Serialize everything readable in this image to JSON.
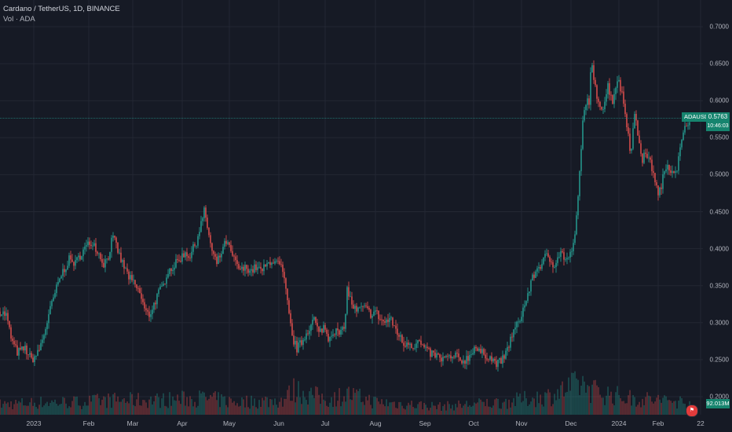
{
  "header": {
    "title": "Cardano / TetherUS, 1D, BINANCE",
    "volume_label": "Vol · ADA"
  },
  "symbol_badge": "ADAUSDT",
  "last_price": "0.5763",
  "countdown": "10:46:03",
  "volume_value": "92.013M",
  "calendar_icon_text": "",
  "colors": {
    "background": "#161a25",
    "up": "#26a69a",
    "down": "#ef5350",
    "grid": "#232733",
    "badge": "#16846e"
  },
  "chart_data": {
    "type": "candlestick",
    "y_ticks": [
      "0.7000",
      "0.6500",
      "0.6000",
      "0.5500",
      "0.5000",
      "0.4500",
      "0.4000",
      "0.3500",
      "0.3000",
      "0.2500",
      "0.2000"
    ],
    "x_ticks": [
      "2023",
      "Feb",
      "Mar",
      "Apr",
      "May",
      "Jun",
      "Jul",
      "Aug",
      "Sep",
      "Oct",
      "Nov",
      "Dec",
      "2024",
      "Feb",
      "22"
    ],
    "ylim": [
      0.2,
      0.7
    ],
    "grid": true,
    "close_path": [
      [
        0,
        0.315
      ],
      [
        8,
        0.31
      ],
      [
        15,
        0.275
      ],
      [
        22,
        0.26
      ],
      [
        32,
        0.265
      ],
      [
        40,
        0.25
      ],
      [
        48,
        0.258
      ],
      [
        55,
        0.28
      ],
      [
        62,
        0.31
      ],
      [
        70,
        0.34
      ],
      [
        78,
        0.365
      ],
      [
        88,
        0.385
      ],
      [
        96,
        0.38
      ],
      [
        104,
        0.395
      ],
      [
        112,
        0.405
      ],
      [
        118,
        0.41
      ],
      [
        125,
        0.395
      ],
      [
        132,
        0.38
      ],
      [
        138,
        0.39
      ],
      [
        143,
        0.415
      ],
      [
        148,
        0.405
      ],
      [
        152,
        0.39
      ],
      [
        158,
        0.375
      ],
      [
        165,
        0.36
      ],
      [
        172,
        0.35
      ],
      [
        178,
        0.34
      ],
      [
        185,
        0.315
      ],
      [
        190,
        0.31
      ],
      [
        196,
        0.325
      ],
      [
        202,
        0.34
      ],
      [
        208,
        0.35
      ],
      [
        213,
        0.37
      ],
      [
        220,
        0.375
      ],
      [
        228,
        0.385
      ],
      [
        236,
        0.395
      ],
      [
        242,
        0.39
      ],
      [
        250,
        0.41
      ],
      [
        255,
        0.43
      ],
      [
        260,
        0.45
      ],
      [
        264,
        0.43
      ],
      [
        270,
        0.395
      ],
      [
        276,
        0.38
      ],
      [
        282,
        0.395
      ],
      [
        288,
        0.41
      ],
      [
        294,
        0.395
      ],
      [
        300,
        0.38
      ],
      [
        307,
        0.37
      ],
      [
        314,
        0.375
      ],
      [
        320,
        0.37
      ],
      [
        326,
        0.375
      ],
      [
        332,
        0.37
      ],
      [
        338,
        0.375
      ],
      [
        345,
        0.385
      ],
      [
        352,
        0.38
      ],
      [
        358,
        0.375
      ],
      [
        363,
        0.35
      ],
      [
        368,
        0.31
      ],
      [
        372,
        0.28
      ],
      [
        378,
        0.265
      ],
      [
        385,
        0.275
      ],
      [
        392,
        0.29
      ],
      [
        400,
        0.305
      ],
      [
        406,
        0.285
      ],
      [
        412,
        0.295
      ],
      [
        418,
        0.28
      ],
      [
        425,
        0.29
      ],
      [
        432,
        0.285
      ],
      [
        438,
        0.29
      ],
      [
        442,
        0.345
      ],
      [
        448,
        0.325
      ],
      [
        454,
        0.315
      ],
      [
        460,
        0.32
      ],
      [
        466,
        0.318
      ],
      [
        472,
        0.312
      ],
      [
        478,
        0.315
      ],
      [
        484,
        0.305
      ],
      [
        490,
        0.3
      ],
      [
        496,
        0.305
      ],
      [
        502,
        0.295
      ],
      [
        508,
        0.283
      ],
      [
        514,
        0.27
      ],
      [
        520,
        0.275
      ],
      [
        526,
        0.268
      ],
      [
        532,
        0.275
      ],
      [
        538,
        0.268
      ],
      [
        544,
        0.26
      ],
      [
        550,
        0.258
      ],
      [
        556,
        0.255
      ],
      [
        562,
        0.25
      ],
      [
        568,
        0.253
      ],
      [
        574,
        0.251
      ],
      [
        580,
        0.255
      ],
      [
        586,
        0.248
      ],
      [
        592,
        0.25
      ],
      [
        598,
        0.255
      ],
      [
        604,
        0.268
      ],
      [
        610,
        0.26
      ],
      [
        616,
        0.258
      ],
      [
        622,
        0.255
      ],
      [
        628,
        0.248
      ],
      [
        634,
        0.245
      ],
      [
        640,
        0.25
      ],
      [
        645,
        0.26
      ],
      [
        650,
        0.278
      ],
      [
        655,
        0.29
      ],
      [
        660,
        0.3
      ],
      [
        665,
        0.315
      ],
      [
        670,
        0.33
      ],
      [
        675,
        0.35
      ],
      [
        680,
        0.365
      ],
      [
        685,
        0.375
      ],
      [
        690,
        0.38
      ],
      [
        695,
        0.39
      ],
      [
        700,
        0.385
      ],
      [
        705,
        0.378
      ],
      [
        710,
        0.39
      ],
      [
        715,
        0.395
      ],
      [
        720,
        0.385
      ],
      [
        725,
        0.388
      ],
      [
        730,
        0.405
      ],
      [
        734,
        0.44
      ],
      [
        738,
        0.5
      ],
      [
        742,
        0.57
      ],
      [
        746,
        0.6
      ],
      [
        750,
        0.6
      ],
      [
        753,
        0.65
      ],
      [
        757,
        0.62
      ],
      [
        762,
        0.6
      ],
      [
        768,
        0.59
      ],
      [
        774,
        0.62
      ],
      [
        780,
        0.6
      ],
      [
        786,
        0.63
      ],
      [
        792,
        0.61
      ],
      [
        798,
        0.57
      ],
      [
        803,
        0.53
      ],
      [
        808,
        0.58
      ],
      [
        813,
        0.55
      ],
      [
        818,
        0.52
      ],
      [
        823,
        0.53
      ],
      [
        828,
        0.515
      ],
      [
        833,
        0.5
      ],
      [
        838,
        0.47
      ],
      [
        844,
        0.495
      ],
      [
        850,
        0.515
      ],
      [
        856,
        0.505
      ],
      [
        862,
        0.51
      ],
      [
        868,
        0.545
      ],
      [
        873,
        0.565
      ],
      [
        878,
        0.5763
      ]
    ],
    "volume_path": [
      [
        0,
        0.25
      ],
      [
        60,
        0.3
      ],
      [
        100,
        0.3
      ],
      [
        140,
        0.35
      ],
      [
        200,
        0.35
      ],
      [
        260,
        0.4
      ],
      [
        300,
        0.3
      ],
      [
        360,
        0.35
      ],
      [
        375,
        0.6
      ],
      [
        420,
        0.35
      ],
      [
        440,
        0.5
      ],
      [
        480,
        0.3
      ],
      [
        560,
        0.2
      ],
      [
        640,
        0.3
      ],
      [
        700,
        0.45
      ],
      [
        740,
        0.75
      ],
      [
        760,
        0.55
      ],
      [
        800,
        0.4
      ],
      [
        840,
        0.35
      ],
      [
        878,
        0.3
      ]
    ]
  }
}
